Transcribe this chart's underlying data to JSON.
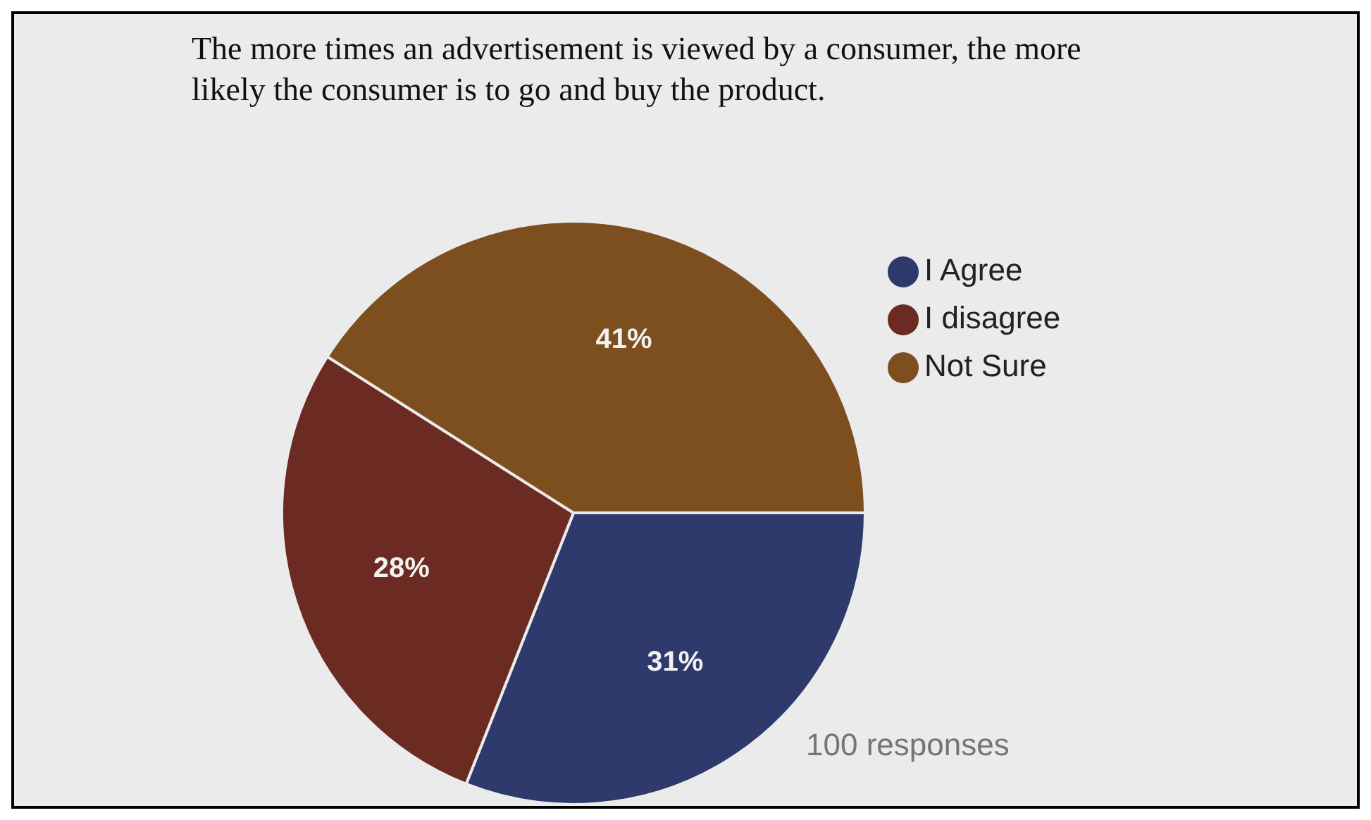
{
  "chart_data": {
    "type": "pie",
    "title": "The more times an advertisement is viewed by a consumer, the more likely the consumer is to go and buy the product.",
    "categories": [
      "I Agree",
      "I disagree",
      "Not Sure"
    ],
    "values": [
      31,
      28,
      41
    ],
    "colors": [
      "#2e3a6c",
      "#6b2a22",
      "#7d4f1f"
    ],
    "value_labels": [
      "31%",
      "28%",
      "41%"
    ],
    "legend": "top right",
    "annotations": [
      "100 responses"
    ]
  }
}
